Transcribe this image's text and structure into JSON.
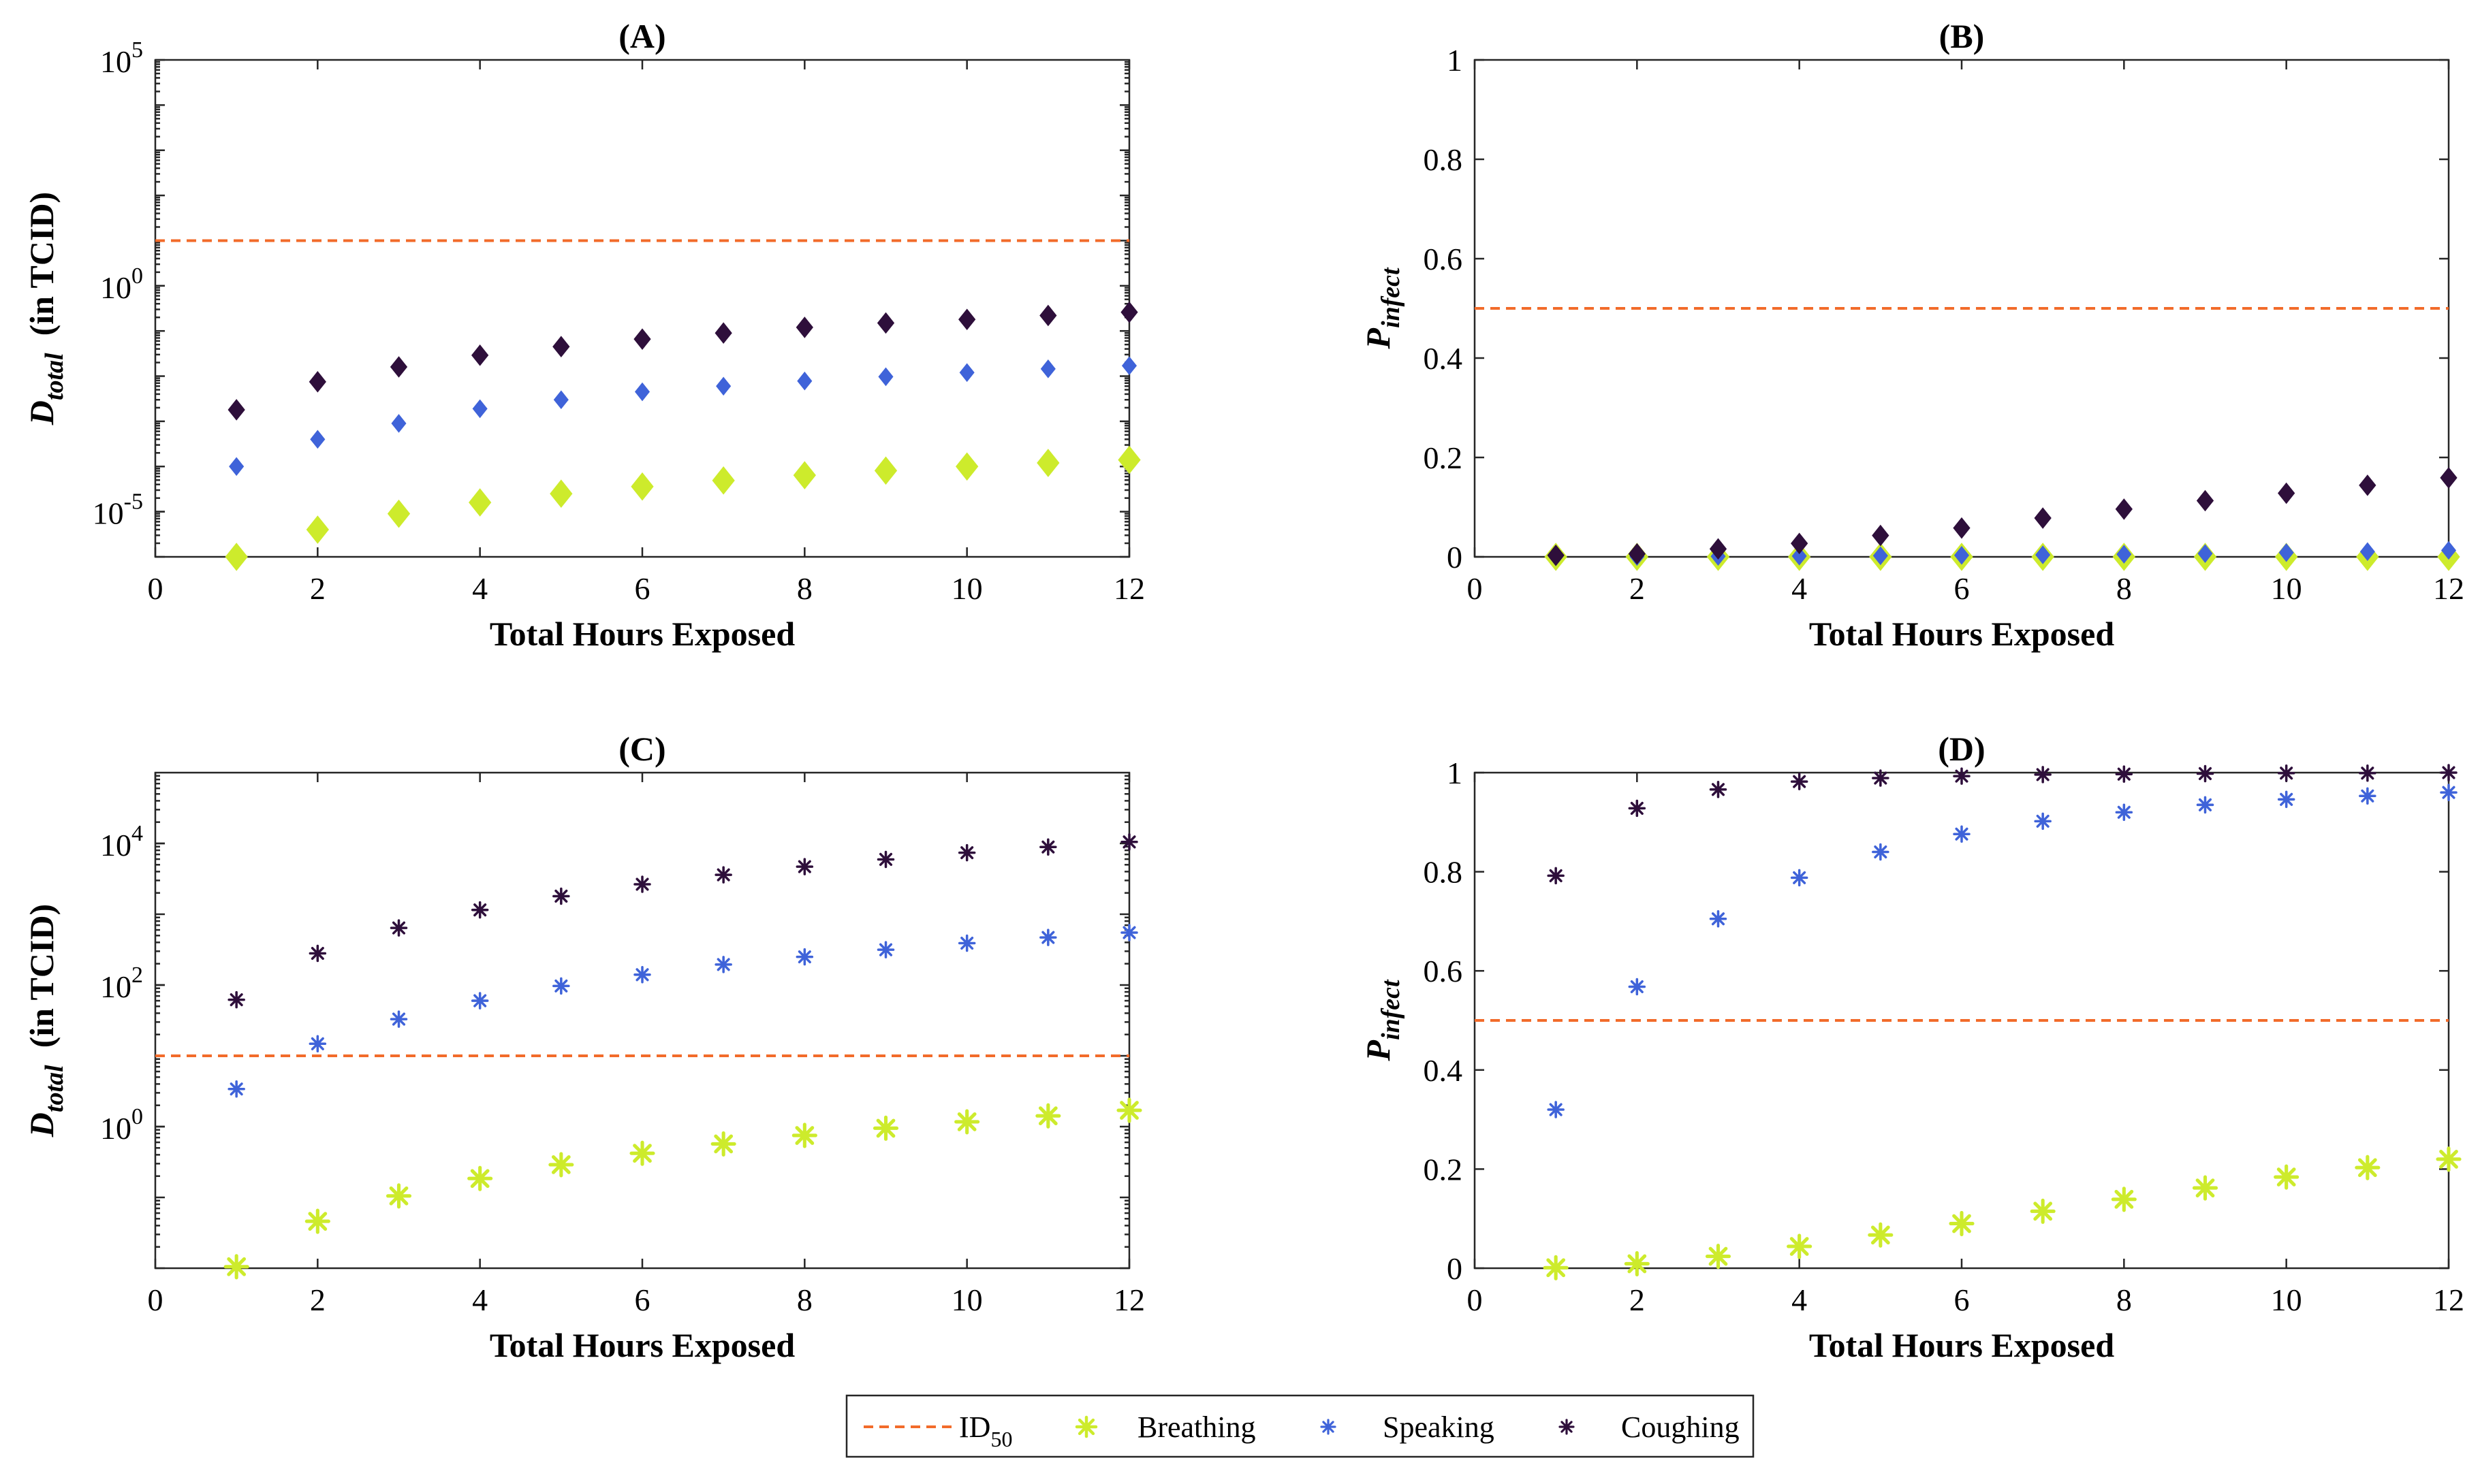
{
  "chart_data": [
    {
      "panel": "(A)",
      "type": "scatter",
      "title": "(A)",
      "xlabel": "Total Hours Exposed",
      "ylabel_main": "D",
      "ylabel_sub": "total",
      "ylabel_rest": "(in TCID)",
      "yscale": "log",
      "xlim": [
        0,
        12
      ],
      "ylim": [
        1e-06,
        100000
      ],
      "xticks": [
        0,
        2,
        4,
        6,
        8,
        10,
        12
      ],
      "xtick_labels": [
        "0",
        "2",
        "4",
        "6",
        "8",
        "10",
        "12"
      ],
      "yticks": [
        1e-05,
        1,
        100000
      ],
      "ytick_labels": [
        {
          "base": "10",
          "exp": "-5"
        },
        {
          "base": "10",
          "exp": "0"
        },
        {
          "base": "10",
          "exp": "5"
        }
      ],
      "marker": "diamond",
      "reference_line": {
        "name": "ID50",
        "value": 10
      },
      "x": [
        1,
        2,
        3,
        4,
        5,
        6,
        7,
        8,
        9,
        10,
        11,
        12
      ],
      "series": [
        {
          "name": "Breathing",
          "values": [
            1e-06,
            4e-06,
            9e-06,
            1.6e-05,
            2.5e-05,
            3.6e-05,
            4.9e-05,
            6.4e-05,
            8.1e-05,
            0.0001,
            0.00012,
            0.00014
          ]
        },
        {
          "name": "Speaking",
          "values": [
            0.0001,
            0.0004,
            0.0009,
            0.0019,
            0.003,
            0.0045,
            0.006,
            0.0078,
            0.0097,
            0.012,
            0.0145,
            0.017
          ]
        },
        {
          "name": "Coughing",
          "values": [
            0.0018,
            0.0075,
            0.016,
            0.029,
            0.045,
            0.066,
            0.09,
            0.12,
            0.15,
            0.18,
            0.22,
            0.26
          ]
        }
      ]
    },
    {
      "panel": "(B)",
      "type": "scatter",
      "title": "(B)",
      "xlabel": "Total Hours Exposed",
      "ylabel_main": "P",
      "ylabel_sub": "infect",
      "ylabel_rest": "",
      "yscale": "linear",
      "xlim": [
        0,
        12
      ],
      "ylim": [
        0,
        1
      ],
      "xticks": [
        0,
        2,
        4,
        6,
        8,
        10,
        12
      ],
      "xtick_labels": [
        "0",
        "2",
        "4",
        "6",
        "8",
        "10",
        "12"
      ],
      "yticks": [
        0,
        0.2,
        0.4,
        0.6,
        0.8,
        1
      ],
      "ytick_labels": [
        "0",
        "0.2",
        "0.4",
        "0.6",
        "0.8",
        "1"
      ],
      "marker": "diamond",
      "reference_line": {
        "name": "ID50",
        "value": 0.5
      },
      "x": [
        1,
        2,
        3,
        4,
        5,
        6,
        7,
        8,
        9,
        10,
        11,
        12
      ],
      "series": [
        {
          "name": "Breathing",
          "values": [
            0,
            0,
            0,
            0,
            0,
            0,
            0,
            0,
            0,
            0,
            0,
            0
          ]
        },
        {
          "name": "Speaking",
          "values": [
            0.0002,
            0.0005,
            0.001,
            0.0015,
            0.0022,
            0.003,
            0.004,
            0.0052,
            0.0066,
            0.0085,
            0.0105,
            0.013
          ]
        },
        {
          "name": "Coughing",
          "values": [
            0.003,
            0.006,
            0.016,
            0.027,
            0.043,
            0.058,
            0.078,
            0.096,
            0.113,
            0.128,
            0.144,
            0.159
          ]
        }
      ]
    },
    {
      "panel": "(C)",
      "type": "scatter",
      "title": "(C)",
      "xlabel": "Total Hours Exposed",
      "ylabel_main": "D",
      "ylabel_sub": "total",
      "ylabel_rest": "(in TCID)",
      "yscale": "log",
      "xlim": [
        0,
        12
      ],
      "ylim": [
        0.01,
        100000
      ],
      "xticks": [
        0,
        2,
        4,
        6,
        8,
        10,
        12
      ],
      "xtick_labels": [
        "0",
        "2",
        "4",
        "6",
        "8",
        "10",
        "12"
      ],
      "yticks": [
        1,
        100,
        10000
      ],
      "ytick_labels": [
        {
          "base": "10",
          "exp": "0"
        },
        {
          "base": "10",
          "exp": "2"
        },
        {
          "base": "10",
          "exp": "4"
        }
      ],
      "marker": "asterisk",
      "reference_line": {
        "name": "ID50",
        "value": 10
      },
      "x": [
        1,
        2,
        3,
        4,
        5,
        6,
        7,
        8,
        9,
        10,
        11,
        12
      ],
      "series": [
        {
          "name": "Breathing",
          "values": [
            0.0105,
            0.046,
            0.105,
            0.185,
            0.29,
            0.42,
            0.57,
            0.75,
            0.95,
            1.17,
            1.42,
            1.7
          ]
        },
        {
          "name": "Speaking",
          "values": [
            3.4,
            14.8,
            33,
            60,
            97,
            140,
            195,
            250,
            315,
            390,
            470,
            550
          ]
        },
        {
          "name": "Coughing",
          "values": [
            62,
            280,
            640,
            1150,
            1800,
            2650,
            3600,
            4700,
            5950,
            7400,
            8900,
            10500
          ]
        }
      ]
    },
    {
      "panel": "(D)",
      "type": "scatter",
      "title": "(D)",
      "xlabel": "Total Hours Exposed",
      "ylabel_main": "P",
      "ylabel_sub": "infect",
      "ylabel_rest": "",
      "yscale": "linear",
      "xlim": [
        0,
        12
      ],
      "ylim": [
        0,
        1
      ],
      "xticks": [
        0,
        2,
        4,
        6,
        8,
        10,
        12
      ],
      "xtick_labels": [
        "0",
        "2",
        "4",
        "6",
        "8",
        "10",
        "12"
      ],
      "yticks": [
        0,
        0.2,
        0.4,
        0.6,
        0.8,
        1
      ],
      "ytick_labels": [
        "0",
        "0.2",
        "0.4",
        "0.6",
        "0.8",
        "1"
      ],
      "marker": "asterisk",
      "reference_line": {
        "name": "ID50",
        "value": 0.5
      },
      "x": [
        1,
        2,
        3,
        4,
        5,
        6,
        7,
        8,
        9,
        10,
        11,
        12
      ],
      "series": [
        {
          "name": "Breathing",
          "values": [
            0.001,
            0.009,
            0.024,
            0.044,
            0.067,
            0.09,
            0.115,
            0.139,
            0.162,
            0.184,
            0.203,
            0.22
          ]
        },
        {
          "name": "Speaking",
          "values": [
            0.32,
            0.568,
            0.705,
            0.788,
            0.84,
            0.876,
            0.902,
            0.92,
            0.935,
            0.946,
            0.953,
            0.96
          ]
        },
        {
          "name": "Coughing",
          "values": [
            0.792,
            0.928,
            0.966,
            0.982,
            0.989,
            0.993,
            0.996,
            0.997,
            0.998,
            0.999,
            0.999,
            1.0
          ]
        }
      ]
    }
  ],
  "legend": {
    "items": [
      {
        "key": "ID50",
        "label_base": "ID",
        "label_sub": "50",
        "marker": "dash",
        "color": "#F26B2A"
      },
      {
        "key": "Breathing",
        "label_base": "Breathing",
        "label_sub": "",
        "marker": "asterisk",
        "color": "#CDEB2C"
      },
      {
        "key": "Speaking",
        "label_base": "Speaking",
        "label_sub": "",
        "marker": "asterisk",
        "color": "#3F63D9"
      },
      {
        "key": "Coughing",
        "label_base": "Coughing",
        "label_sub": "",
        "marker": "asterisk",
        "color": "#2E0F3B"
      }
    ]
  },
  "colors": {
    "Breathing": "#CDEB2C",
    "Speaking": "#3F63D9",
    "Coughing": "#2E0F3B",
    "ID50": "#F26B2A"
  }
}
